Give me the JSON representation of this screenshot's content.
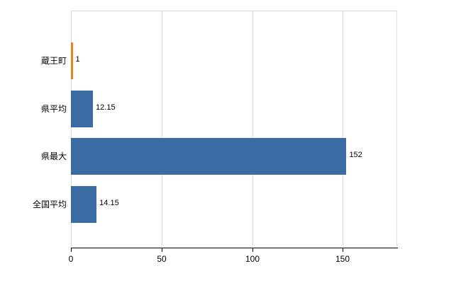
{
  "chart_data": {
    "type": "bar",
    "orientation": "horizontal",
    "title": "",
    "xlabel": "",
    "ylabel": "",
    "categories": [
      "蔵王町",
      "県平均",
      "県最大",
      "全国平均"
    ],
    "values": [
      1,
      12.15,
      152,
      14.15
    ],
    "value_labels": [
      "1",
      "12.15",
      "152",
      "14.15"
    ],
    "bar_colors": [
      "#e8821d",
      "#3a6ba3",
      "#3a6ba3",
      "#3a6ba3"
    ],
    "xlim": [
      0,
      180
    ],
    "x_ticks": [
      0,
      50,
      100,
      150
    ],
    "grid": "vertical-only",
    "legend": "none"
  },
  "colors": {
    "bar_blue": "#3a6ba3",
    "bar_orange": "#e8821d",
    "gridline": "#d9d9d9",
    "axis": "#000000",
    "background": "#ffffff"
  }
}
